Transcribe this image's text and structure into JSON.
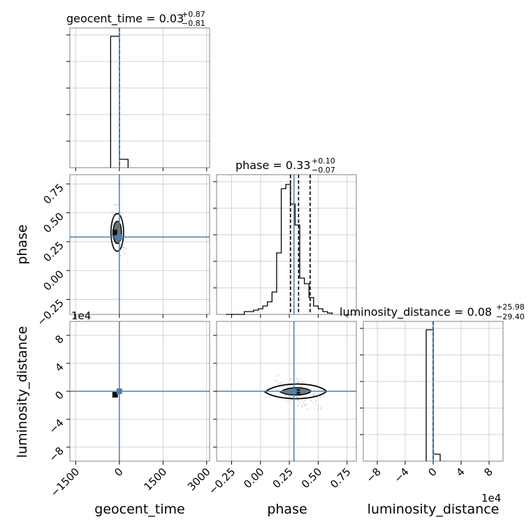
{
  "chart_data": {
    "type": "corner",
    "parameters": [
      "geocent_time",
      "phase",
      "luminosity_distance"
    ],
    "titles": [
      {
        "param": "geocent_time",
        "median": "0.03",
        "plus": "+0.87",
        "minus": "−0.81"
      },
      {
        "param": "phase",
        "median": "0.33",
        "plus": "+0.10",
        "minus": "−0.07"
      },
      {
        "param": "luminosity_distance",
        "median": "0.08",
        "plus": "+25.98",
        "minus": "−29.40"
      }
    ],
    "axes": {
      "geocent_time": {
        "range": [
          -1700,
          3100
        ],
        "ticks": [
          -1500,
          0,
          1500,
          3000
        ],
        "tick_labels": [
          "−1500",
          "0",
          "1500",
          "3000"
        ]
      },
      "phase": {
        "range": [
          -0.38,
          0.83
        ],
        "ticks": [
          -0.25,
          0.0,
          0.25,
          0.5,
          0.75
        ],
        "tick_labels": [
          "−0.25",
          "0.00",
          "0.25",
          "0.50",
          "0.75"
        ]
      },
      "luminosity_distance": {
        "range": [
          -100000,
          100000
        ],
        "ticks": [
          -80000,
          -40000,
          0,
          40000,
          80000
        ],
        "tick_labels": [
          "−8",
          "−4",
          "0",
          "4",
          "8"
        ],
        "offset_label": "1e4"
      }
    },
    "injection": {
      "geocent_time": 0,
      "phase": 0.29,
      "luminosity_distance": 0
    },
    "quantiles": {
      "geocent_time": [
        -0.78,
        0.03,
        0.9
      ],
      "phase": [
        0.26,
        0.33,
        0.43
      ],
      "luminosity_distance": [
        -29.32,
        0.08,
        26.06
      ]
    },
    "histograms": {
      "geocent_time": {
        "edges": [
          -300,
          0,
          300
        ],
        "counts": [
          0.94,
          0.06
        ]
      },
      "phase": {
        "edges": [
          -0.3,
          -0.26,
          -0.22,
          -0.18,
          -0.14,
          -0.1,
          -0.06,
          -0.02,
          0.02,
          0.06,
          0.1,
          0.14,
          0.18,
          0.22,
          0.26,
          0.3,
          0.34,
          0.38,
          0.42,
          0.46,
          0.5,
          0.54,
          0.58,
          0.62
        ],
        "counts": [
          0.0,
          0.0,
          0.0,
          0.0,
          0.02,
          0.02,
          0.03,
          0.04,
          0.06,
          0.09,
          0.16,
          0.44,
          0.9,
          0.93,
          0.79,
          0.64,
          0.26,
          0.22,
          0.12,
          0.06,
          0.04,
          0.02,
          0.01
        ]
      },
      "luminosity_distance": {
        "edges": [
          -10000,
          0,
          10000
        ],
        "counts": [
          0.94,
          0.05
        ]
      }
    },
    "grid": true
  }
}
